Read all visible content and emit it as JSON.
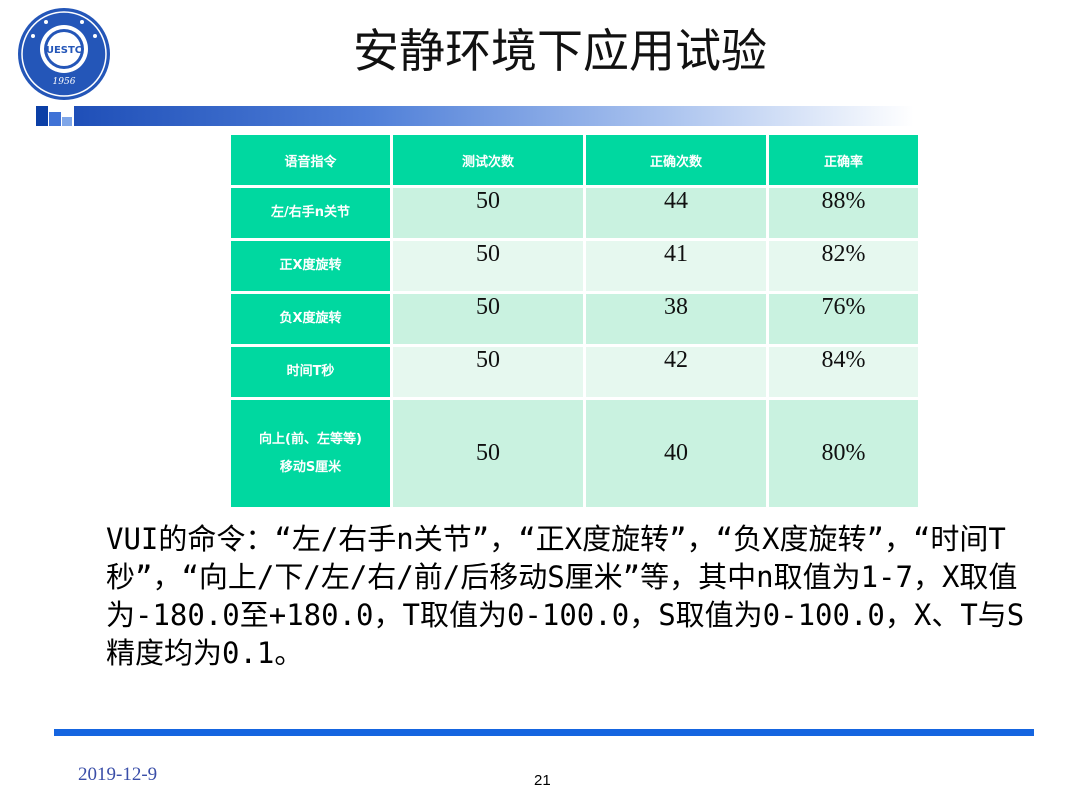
{
  "slide": {
    "title": "安静环境下应用试验",
    "logo": {
      "icon": "uestc-seal",
      "text": "UESTC",
      "year": "1956"
    },
    "table": {
      "headers": [
        "语音指令",
        "测试次数",
        "正确次数",
        "正确率"
      ],
      "rows": [
        {
          "command": "左/右手n关节",
          "tests": "50",
          "correct": "44",
          "rate": "88%"
        },
        {
          "command": "正X度旋转",
          "tests": "50",
          "correct": "41",
          "rate": "82%"
        },
        {
          "command": "负X度旋转",
          "tests": "50",
          "correct": "38",
          "rate": "76%"
        },
        {
          "command": "时间T秒",
          "tests": "50",
          "correct": "42",
          "rate": "84%"
        },
        {
          "command_line1": "向上(前、左等等)",
          "command_line2": "移动S厘米",
          "tests": "50",
          "correct": "40",
          "rate": "80%"
        }
      ]
    },
    "description": "VUI的命令：“左/右手n关节”，“正X度旋转”，“负X度旋转”，“时间T秒”，“向上/下/左/右/前/后移动S厘米”等，其中n取值为1-7，X取值为-180.0至+180.0，T取值为0-100.0，S取值为0-100.0，X、T与S精度均为0.1。",
    "date": "2019-12-9",
    "page_number": "21"
  },
  "colors": {
    "table_header": "#00d8a0",
    "row_odd": "#c9f2e0",
    "row_even": "#e6f8ef",
    "accent_blue": "#1565e0",
    "logo_blue": "#1f4fb8"
  }
}
